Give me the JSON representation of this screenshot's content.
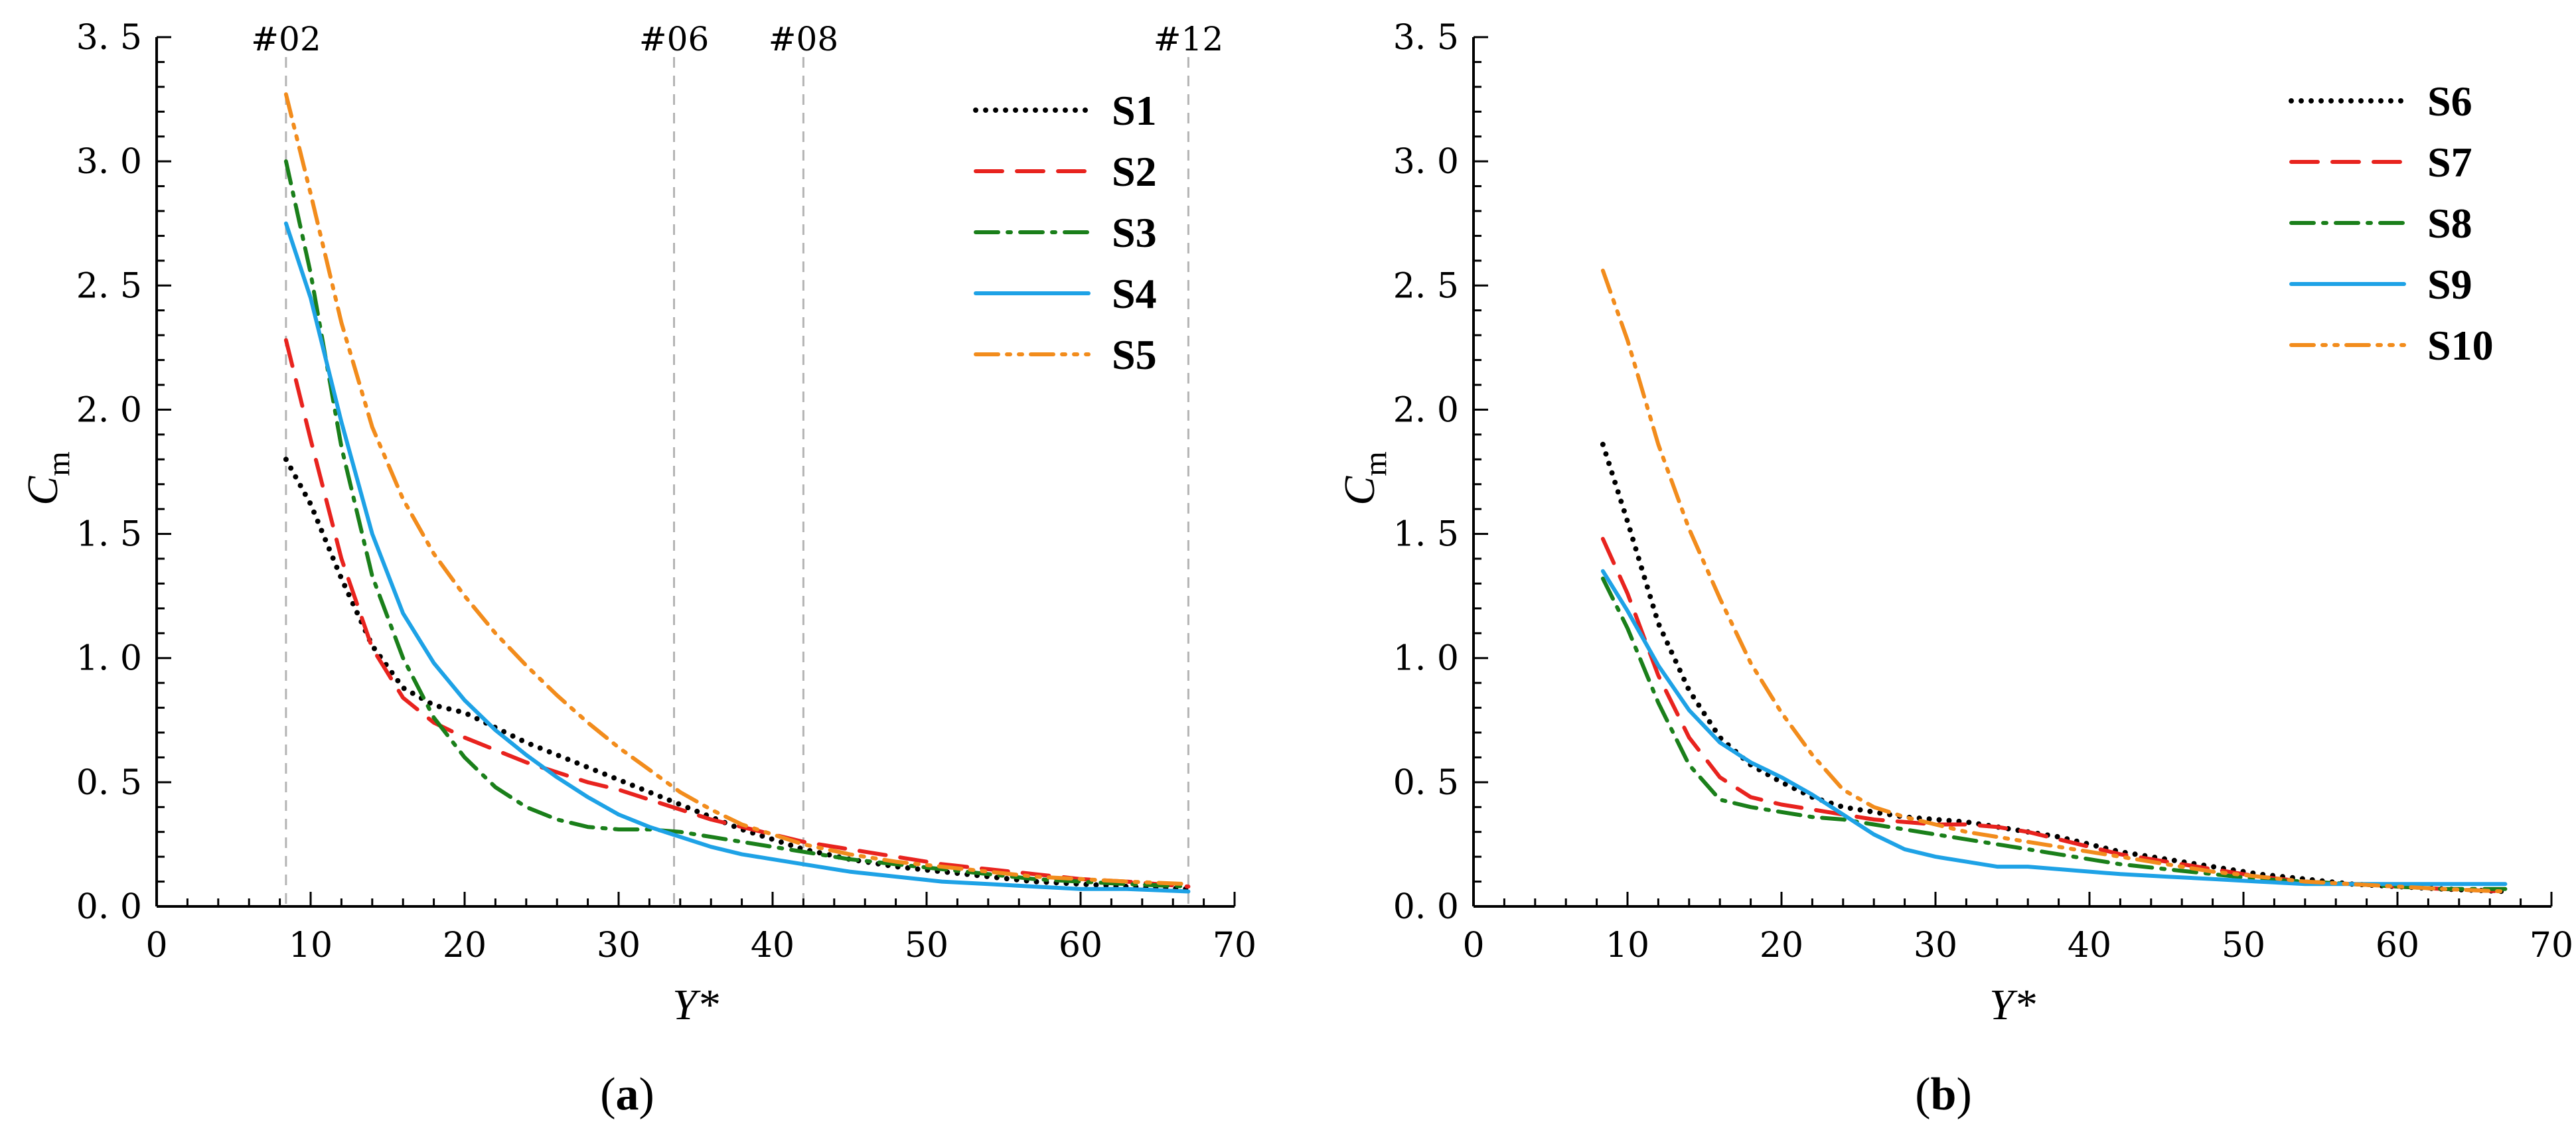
{
  "chart_data": [
    {
      "type": "line",
      "panel_label": "a",
      "xlabel": "Y*",
      "ylabel": "C",
      "ylabel_sub": "m",
      "xlim": [
        0,
        70
      ],
      "ylim": [
        0,
        3.5
      ],
      "xticks": [
        0,
        10,
        20,
        30,
        40,
        50,
        60,
        70
      ],
      "yticks": [
        "0.0",
        "0.5",
        "1.0",
        "1.5",
        "2.0",
        "2.5",
        "3.0",
        "3.5"
      ],
      "grid": false,
      "legend_position": "top-right",
      "reference_lines": [
        {
          "label": "#02",
          "x": 8.4
        },
        {
          "label": "#06",
          "x": 33.6
        },
        {
          "label": "#08",
          "x": 42.0
        },
        {
          "label": "#12",
          "x": 67.0
        }
      ],
      "series": [
        {
          "name": "S1",
          "color": "#000000",
          "style": "dotted",
          "x": [
            8.4,
            10,
            12,
            14,
            16,
            18,
            20,
            22,
            24,
            26,
            28,
            30,
            32,
            34,
            36,
            38,
            40,
            42,
            45,
            48,
            51,
            54,
            57,
            60,
            63,
            67
          ],
          "y": [
            1.8,
            1.62,
            1.32,
            1.05,
            0.88,
            0.81,
            0.78,
            0.72,
            0.66,
            0.61,
            0.56,
            0.51,
            0.46,
            0.41,
            0.36,
            0.31,
            0.27,
            0.23,
            0.19,
            0.16,
            0.14,
            0.12,
            0.1,
            0.09,
            0.08,
            0.07
          ]
        },
        {
          "name": "S2",
          "color": "#e8231e",
          "style": "dashed",
          "x": [
            8.4,
            10,
            12,
            14,
            16,
            18,
            20,
            22,
            24,
            26,
            28,
            30,
            32,
            34,
            36,
            38,
            40,
            42,
            45,
            48,
            51,
            54,
            57,
            60,
            63,
            67
          ],
          "y": [
            2.28,
            1.88,
            1.4,
            1.04,
            0.84,
            0.74,
            0.68,
            0.63,
            0.58,
            0.54,
            0.5,
            0.47,
            0.43,
            0.39,
            0.35,
            0.32,
            0.29,
            0.26,
            0.23,
            0.2,
            0.17,
            0.15,
            0.13,
            0.11,
            0.1,
            0.08
          ]
        },
        {
          "name": "S3",
          "color": "#1a7f1a",
          "style": "dashdot",
          "x": [
            8.4,
            10,
            12,
            14,
            16,
            18,
            20,
            22,
            24,
            26,
            28,
            30,
            32,
            34,
            36,
            38,
            40,
            42,
            45,
            48,
            51,
            54,
            57,
            60,
            63,
            67
          ],
          "y": [
            3.0,
            2.55,
            1.85,
            1.33,
            1.0,
            0.76,
            0.6,
            0.48,
            0.4,
            0.35,
            0.32,
            0.31,
            0.31,
            0.3,
            0.28,
            0.26,
            0.24,
            0.22,
            0.19,
            0.17,
            0.15,
            0.13,
            0.11,
            0.1,
            0.09,
            0.08
          ]
        },
        {
          "name": "S4",
          "color": "#1ea2e6",
          "style": "solid",
          "x": [
            8.4,
            10,
            12,
            14,
            16,
            18,
            20,
            22,
            24,
            26,
            28,
            30,
            32,
            34,
            36,
            38,
            40,
            42,
            45,
            48,
            51,
            54,
            57,
            60,
            63,
            67
          ],
          "y": [
            2.75,
            2.45,
            1.95,
            1.5,
            1.18,
            0.98,
            0.83,
            0.71,
            0.61,
            0.52,
            0.44,
            0.37,
            0.32,
            0.28,
            0.24,
            0.21,
            0.19,
            0.17,
            0.14,
            0.12,
            0.1,
            0.09,
            0.08,
            0.07,
            0.07,
            0.06
          ]
        },
        {
          "name": "S5",
          "color": "#f28c1c",
          "style": "dashdotdot",
          "x": [
            8.4,
            10,
            12,
            14,
            16,
            18,
            20,
            22,
            24,
            26,
            28,
            30,
            32,
            34,
            36,
            38,
            40,
            42,
            45,
            48,
            51,
            54,
            57,
            60,
            63,
            67
          ],
          "y": [
            3.27,
            2.87,
            2.35,
            1.93,
            1.64,
            1.42,
            1.25,
            1.1,
            0.97,
            0.85,
            0.74,
            0.64,
            0.55,
            0.46,
            0.39,
            0.33,
            0.29,
            0.25,
            0.21,
            0.18,
            0.16,
            0.14,
            0.12,
            0.11,
            0.1,
            0.09
          ]
        }
      ]
    },
    {
      "type": "line",
      "panel_label": "b",
      "xlabel": "Y*",
      "ylabel": "C",
      "ylabel_sub": "m",
      "xlim": [
        0,
        70
      ],
      "ylim": [
        0,
        3.5
      ],
      "xticks": [
        0,
        10,
        20,
        30,
        40,
        50,
        60,
        70
      ],
      "yticks": [
        "0.0",
        "0.5",
        "1.0",
        "1.5",
        "2.0",
        "2.5",
        "3.0",
        "3.5"
      ],
      "grid": false,
      "legend_position": "top-right",
      "reference_lines": [],
      "series": [
        {
          "name": "S6",
          "color": "#000000",
          "style": "dotted",
          "x": [
            8.4,
            10,
            12,
            14,
            16,
            18,
            20,
            22,
            24,
            26,
            28,
            30,
            32,
            34,
            36,
            38,
            40,
            42,
            45,
            48,
            51,
            54,
            57,
            60,
            63,
            67
          ],
          "y": [
            1.86,
            1.55,
            1.14,
            0.87,
            0.68,
            0.57,
            0.5,
            0.44,
            0.4,
            0.38,
            0.36,
            0.35,
            0.34,
            0.32,
            0.3,
            0.28,
            0.25,
            0.22,
            0.19,
            0.16,
            0.13,
            0.11,
            0.09,
            0.08,
            0.07,
            0.06
          ]
        },
        {
          "name": "S7",
          "color": "#e8231e",
          "style": "dashed",
          "x": [
            8.4,
            10,
            12,
            14,
            16,
            18,
            20,
            22,
            24,
            26,
            28,
            30,
            32,
            34,
            36,
            38,
            40,
            42,
            45,
            48,
            51,
            54,
            57,
            60,
            63,
            67
          ],
          "y": [
            1.48,
            1.26,
            0.93,
            0.68,
            0.52,
            0.44,
            0.41,
            0.39,
            0.37,
            0.35,
            0.34,
            0.33,
            0.33,
            0.32,
            0.3,
            0.27,
            0.24,
            0.21,
            0.18,
            0.15,
            0.12,
            0.1,
            0.09,
            0.08,
            0.07,
            0.06
          ]
        },
        {
          "name": "S8",
          "color": "#1a7f1a",
          "style": "dashdot",
          "x": [
            8.4,
            10,
            12,
            14,
            16,
            18,
            20,
            22,
            24,
            26,
            28,
            30,
            32,
            34,
            36,
            38,
            40,
            42,
            45,
            48,
            51,
            54,
            57,
            60,
            63,
            67
          ],
          "y": [
            1.32,
            1.12,
            0.82,
            0.57,
            0.43,
            0.4,
            0.38,
            0.36,
            0.35,
            0.33,
            0.31,
            0.29,
            0.27,
            0.25,
            0.23,
            0.21,
            0.19,
            0.17,
            0.15,
            0.13,
            0.11,
            0.1,
            0.09,
            0.08,
            0.07,
            0.07
          ]
        },
        {
          "name": "S9",
          "color": "#1ea2e6",
          "style": "solid",
          "x": [
            8.4,
            10,
            12,
            14,
            16,
            18,
            20,
            22,
            24,
            26,
            28,
            30,
            32,
            34,
            36,
            38,
            40,
            42,
            45,
            48,
            51,
            54,
            57,
            60,
            63,
            67
          ],
          "y": [
            1.35,
            1.19,
            0.97,
            0.79,
            0.66,
            0.58,
            0.52,
            0.45,
            0.37,
            0.29,
            0.23,
            0.2,
            0.18,
            0.16,
            0.16,
            0.15,
            0.14,
            0.13,
            0.12,
            0.11,
            0.1,
            0.09,
            0.09,
            0.09,
            0.09,
            0.09
          ]
        },
        {
          "name": "S10",
          "color": "#f28c1c",
          "style": "dashdotdot",
          "x": [
            8.4,
            10,
            12,
            14,
            16,
            18,
            20,
            22,
            24,
            26,
            28,
            30,
            32,
            34,
            36,
            38,
            40,
            42,
            45,
            48,
            51,
            54,
            57,
            60,
            63,
            67
          ],
          "y": [
            2.56,
            2.28,
            1.86,
            1.52,
            1.24,
            0.98,
            0.78,
            0.61,
            0.47,
            0.4,
            0.36,
            0.33,
            0.3,
            0.28,
            0.26,
            0.24,
            0.22,
            0.2,
            0.17,
            0.14,
            0.12,
            0.1,
            0.09,
            0.08,
            0.07,
            0.06
          ]
        }
      ]
    }
  ]
}
